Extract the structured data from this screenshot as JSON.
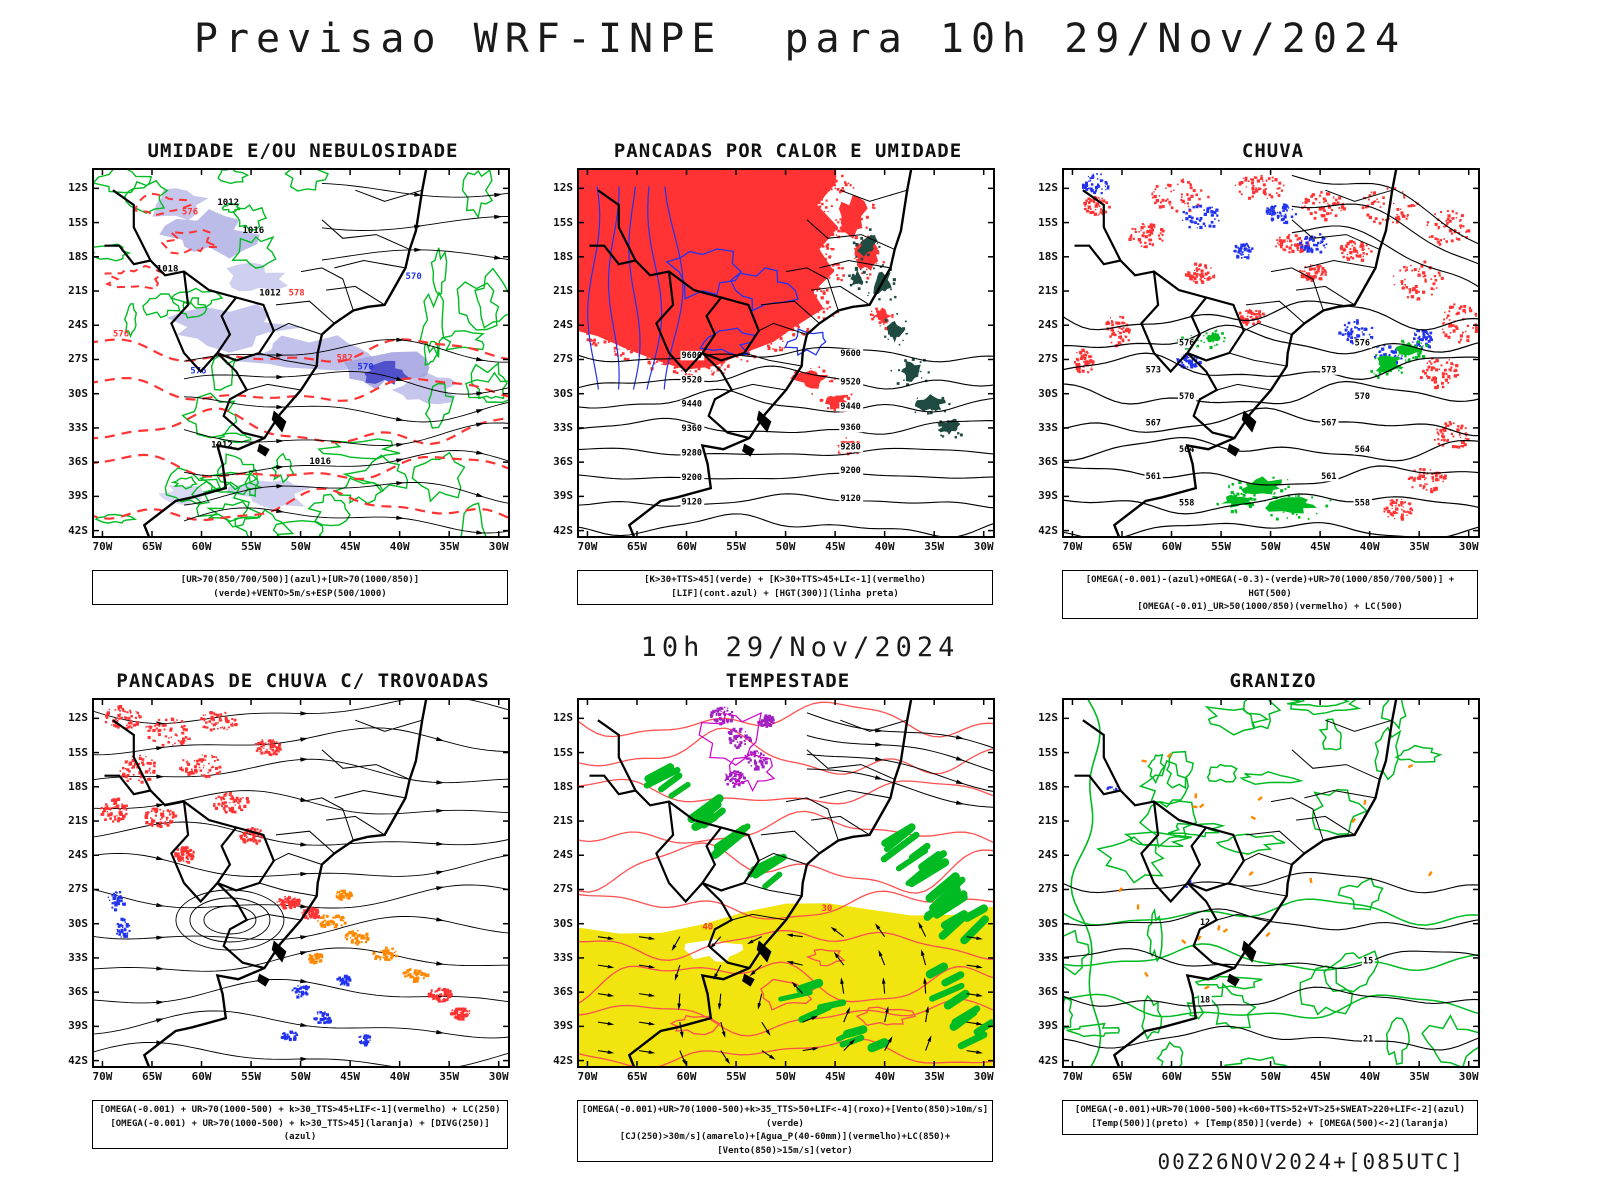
{
  "page": {
    "title": "Previsao WRF-INPE  para 10h 29/Nov/2024",
    "subtitle": "10h 29/Nov/2024",
    "footer": "00Z26NOV2024+[085UTC]"
  },
  "axes": {
    "lat": [
      "12S",
      "15S",
      "18S",
      "21S",
      "24S",
      "27S",
      "30S",
      "33S",
      "36S",
      "39S",
      "42S"
    ],
    "lon": [
      "70W",
      "65W",
      "60W",
      "55W",
      "50W",
      "45W",
      "40W",
      "35W",
      "30W"
    ]
  },
  "colors": {
    "green": "#00bb22",
    "red": "#ff3333",
    "blue": "#2233ee",
    "purple": "#a020c0",
    "magenta": "#cc00cc",
    "orange": "#ff8800",
    "yellow": "#f2e40e",
    "teal": "#1e4a42",
    "shade_blue": "#a0a0e0",
    "black": "#000000"
  },
  "panels": [
    {
      "id": "umidade",
      "title": "UMIDADE E/OU NEBULOSIDADE",
      "caption_lines": [
        "[UR>70(850/700/500)](azul)+[UR>70(1000/850)](verde)+VENTO>5m/s+ESP(500/1000)"
      ],
      "map_labels": {
        "black": [
          "1012",
          "1016",
          "1018",
          "1012",
          "1012",
          "1016"
        ],
        "red": [
          "576",
          "578",
          "582",
          "576"
        ],
        "blue": [
          "570",
          "576",
          "570"
        ]
      }
    },
    {
      "id": "pancadas_calor",
      "title": "PANCADAS POR CALOR E UMIDADE",
      "caption_lines": [
        "[K>30+TTS>45](verde) + [K>30+TTS>45+LI<-1](vermelho)",
        "[LIF](cont.azul) + [HGT(300)](linha preta)"
      ],
      "map_labels": {
        "black": [
          "9600",
          "9520",
          "9440",
          "9360",
          "9280",
          "9200",
          "9120"
        ]
      }
    },
    {
      "id": "chuva",
      "title": "CHUVA",
      "caption_lines": [
        "[OMEGA(-0.001)-(azul)+OMEGA(-0.3)-(verde)+UR>70(1000/850/700/500)] + HGT(500)",
        "[OMEGA(-0.01)_UR>50(1000/850)(vermelho) + LC(500)"
      ],
      "map_labels": {
        "black": [
          "576",
          "573",
          "570",
          "567",
          "564",
          "561",
          "558"
        ]
      }
    },
    {
      "id": "trovoadas",
      "title": "PANCADAS DE CHUVA C/ TROVOADAS",
      "caption_lines": [
        "[OMEGA(-0.001) + UR>70(1000-500) + k>30_TTS>45+LIF<-1](vermelho) + LC(250)",
        "[OMEGA(-0.001) + UR>70(1000-500) + k>30_TTS>45](laranja) + [DIVG(250)](azul)"
      ],
      "map_labels": {}
    },
    {
      "id": "tempestade",
      "title": "TEMPESTADE",
      "caption_lines": [
        "[OMEGA(-0.001)+UR>70(1000-500)+k>35_TTS>50+LIF<-4](roxo)+[Vento(850)>10m/s](verde)",
        "[CJ(250)>30m/s](amarelo)+[Agua_P(40-60mm)](vermelho)+LC(850)+[Vento(850)>15m/s](vetor)"
      ],
      "map_labels": {
        "red": [
          "40",
          "30"
        ]
      }
    },
    {
      "id": "granizo",
      "title": "GRANIZO",
      "caption_lines": [
        "[OMEGA(-0.001)+UR>70(1000-500)+k<60+TTS>52+VT>25+SWEAT>220+LIF<-2](azul)",
        "[Temp(500)](preto) + [Temp(850)](verde) + [OMEGA(500)<-2](laranja)"
      ],
      "map_labels": {
        "black": [
          "12",
          "15",
          "18",
          "21"
        ]
      }
    }
  ]
}
